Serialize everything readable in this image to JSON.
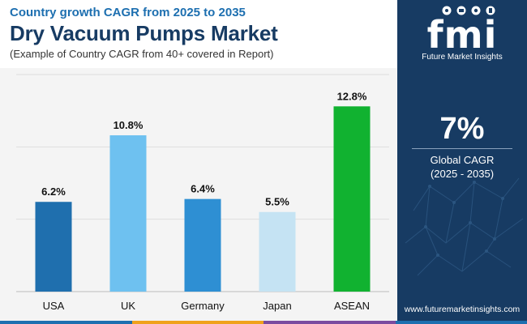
{
  "header": {
    "subtitle_top": "Country growth CAGR from 2025 to 2035",
    "title": "Dry Vacuum Pumps Market",
    "note": "(Example of Country CAGR from 40+ covered in Report)"
  },
  "chart_data": {
    "type": "bar",
    "categories": [
      "USA",
      "UK",
      "Germany",
      "Japan",
      "ASEAN"
    ],
    "values": [
      6.2,
      10.8,
      6.4,
      5.5,
      12.8
    ],
    "data_labels": [
      "6.2%",
      "10.8%",
      "6.4%",
      "5.5%",
      "12.8%"
    ],
    "colors": [
      "#1f6fae",
      "#6ec1f0",
      "#2e8fd3",
      "#c5e3f3",
      "#11b230"
    ],
    "ylim": [
      0,
      15
    ],
    "grid": true,
    "legend": "none"
  },
  "sidebar": {
    "logo_text": "fmi",
    "logo_caption": "Future Market Insights",
    "big_value": "7%",
    "value_label": "Global CAGR",
    "value_period": "(2025 - 2035)",
    "website": "www.futuremarketinsights.com"
  },
  "colors": {
    "sidebar_bg": "#173b63",
    "title": "#173b63",
    "subtitle": "#1d6fb0",
    "bottom_bar": [
      "#1d6fb0",
      "#f0a21b",
      "#7a4ba0",
      "#1d6fb0"
    ]
  }
}
